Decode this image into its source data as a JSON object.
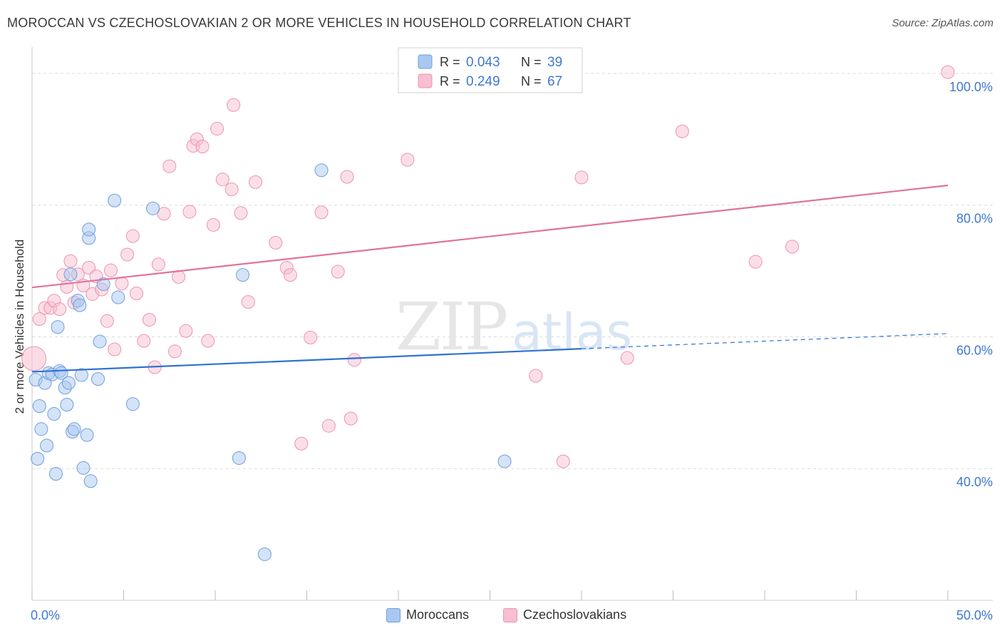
{
  "header": {
    "title": "MOROCCAN VS CZECHOSLOVAKIAN 2 OR MORE VEHICLES IN HOUSEHOLD CORRELATION CHART",
    "source": "Source: ZipAtlas.com"
  },
  "watermark": {
    "zip": "ZIP",
    "atlas": "atlas"
  },
  "legend_top": {
    "rows": [
      {
        "r_label": "R =",
        "r_value": "0.043",
        "n_label": "N =",
        "n_value": "39"
      },
      {
        "r_label": "R =",
        "r_value": "0.249",
        "n_label": "N =",
        "n_value": "67"
      }
    ]
  },
  "colors": {
    "moroccan_fill": "#a9c8f0",
    "moroccan_stroke": "#6e9fde",
    "moroccan_line": "#2e72d2",
    "czech_fill": "#f7bfd0",
    "czech_stroke": "#ec93b1",
    "czech_line": "#e0739a",
    "tick_text": "#3f78d0",
    "grid": "#d9d9d9"
  },
  "chart_data": {
    "type": "scatter",
    "title": "MOROCCAN VS CZECHOSLOVAKIAN 2 OR MORE VEHICLES IN HOUSEHOLD CORRELATION CHART",
    "xlabel": "",
    "ylabel": "2 or more Vehicles in Household",
    "xlim": [
      0,
      50
    ],
    "ylim": [
      20,
      104
    ],
    "x_tick_labels": [
      "0.0%",
      "50.0%"
    ],
    "y_ticks": [
      40,
      60,
      80,
      100
    ],
    "y_tick_labels": [
      "40.0%",
      "60.0%",
      "80.0%",
      "100.0%"
    ],
    "grid": true,
    "legend_placement": "top-center",
    "series": [
      {
        "name": "Moroccans",
        "r": 0.043,
        "n": 39,
        "trend": {
          "x0": 0,
          "y0": 54.7,
          "x1": 30,
          "y1": 58.2,
          "dashed_to_x": 50,
          "dashed_to_y": 60.5
        },
        "points": [
          [
            0.2,
            53.5
          ],
          [
            0.3,
            41.5
          ],
          [
            0.4,
            49.5
          ],
          [
            0.5,
            46
          ],
          [
            0.7,
            53
          ],
          [
            0.8,
            43.5
          ],
          [
            0.9,
            54.5
          ],
          [
            1.1,
            54.3
          ],
          [
            1.2,
            48.3
          ],
          [
            1.3,
            39.2
          ],
          [
            1.4,
            61.5
          ],
          [
            1.5,
            54.8
          ],
          [
            1.6,
            54.5
          ],
          [
            1.8,
            52.3
          ],
          [
            1.9,
            49.7
          ],
          [
            2.0,
            53
          ],
          [
            2.1,
            69.5
          ],
          [
            2.2,
            45.6
          ],
          [
            2.3,
            46
          ],
          [
            2.5,
            65.5
          ],
          [
            2.6,
            64.8
          ],
          [
            2.7,
            54.2
          ],
          [
            2.8,
            40.1
          ],
          [
            3.0,
            45.1
          ],
          [
            3.1,
            75
          ],
          [
            3.2,
            38.1
          ],
          [
            3.6,
            53.6
          ],
          [
            3.7,
            59.3
          ],
          [
            3.9,
            68
          ],
          [
            4.5,
            80.7
          ],
          [
            4.7,
            66
          ],
          [
            5.5,
            49.8
          ],
          [
            6.6,
            79.5
          ],
          [
            11.3,
            41.6
          ],
          [
            11.5,
            69.4
          ],
          [
            12.7,
            27
          ],
          [
            15.8,
            85.3
          ],
          [
            25.8,
            41.1
          ],
          [
            3.1,
            76.3
          ]
        ]
      },
      {
        "name": "Czechoslovakians",
        "r": 0.249,
        "n": 67,
        "trend": {
          "x0": 0,
          "y0": 67.5,
          "x1": 50,
          "y1": 83
        },
        "points": [
          [
            0.1,
            56.7
          ],
          [
            0.4,
            62.7
          ],
          [
            0.7,
            64.4
          ],
          [
            1.0,
            64.4
          ],
          [
            1.2,
            65.5
          ],
          [
            1.5,
            64.2
          ],
          [
            1.7,
            69.4
          ],
          [
            1.9,
            67.6
          ],
          [
            2.1,
            71.5
          ],
          [
            2.3,
            65.2
          ],
          [
            2.5,
            69.5
          ],
          [
            2.8,
            67.8
          ],
          [
            3.1,
            70.5
          ],
          [
            3.3,
            66.5
          ],
          [
            3.5,
            69.2
          ],
          [
            3.8,
            67.2
          ],
          [
            4.1,
            62.4
          ],
          [
            4.3,
            70.1
          ],
          [
            4.5,
            58.1
          ],
          [
            4.9,
            68.1
          ],
          [
            5.2,
            72.5
          ],
          [
            5.5,
            75.3
          ],
          [
            5.7,
            66.6
          ],
          [
            6.1,
            59.4
          ],
          [
            6.4,
            62.6
          ],
          [
            6.7,
            55.4
          ],
          [
            6.9,
            71
          ],
          [
            7.2,
            78.7
          ],
          [
            7.5,
            85.9
          ],
          [
            7.8,
            57.8
          ],
          [
            8.0,
            69.1
          ],
          [
            8.4,
            60.9
          ],
          [
            8.6,
            79
          ],
          [
            8.8,
            89
          ],
          [
            9.0,
            90
          ],
          [
            9.3,
            88.9
          ],
          [
            9.6,
            59.4
          ],
          [
            9.9,
            77
          ],
          [
            10.1,
            91.6
          ],
          [
            10.4,
            83.9
          ],
          [
            10.9,
            82.4
          ],
          [
            11.0,
            95.2
          ],
          [
            11.4,
            78.8
          ],
          [
            11.8,
            65.3
          ],
          [
            12.2,
            83.5
          ],
          [
            13.3,
            74.3
          ],
          [
            13.9,
            70.5
          ],
          [
            14.1,
            69.4
          ],
          [
            14.7,
            43.8
          ],
          [
            15.2,
            59.9
          ],
          [
            15.8,
            78.9
          ],
          [
            16.2,
            46.5
          ],
          [
            16.7,
            69.9
          ],
          [
            17.2,
            84.3
          ],
          [
            17.4,
            47.6
          ],
          [
            20.5,
            86.9
          ],
          [
            23.5,
            100
          ],
          [
            27.5,
            54.1
          ],
          [
            29.0,
            41.1
          ],
          [
            30.0,
            84.2
          ],
          [
            32.5,
            56.8
          ],
          [
            35.5,
            91.2
          ],
          [
            39.5,
            71.4
          ],
          [
            41.5,
            73.7
          ],
          [
            50.0,
            100.2
          ],
          [
            24.0,
            100.1
          ],
          [
            17.6,
            56.5
          ]
        ]
      }
    ]
  }
}
